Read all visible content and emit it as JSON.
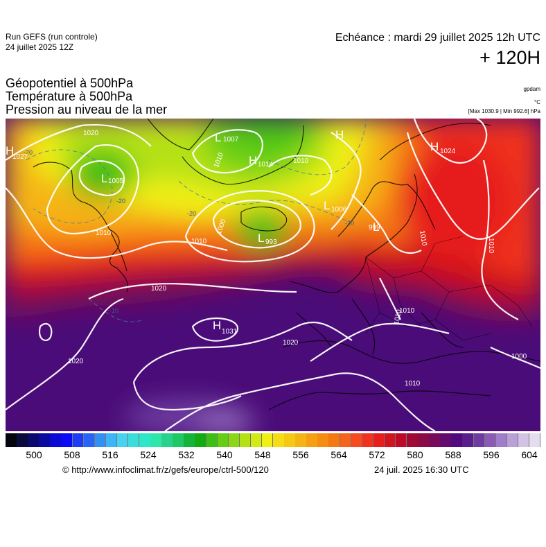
{
  "header": {
    "run_line1": "Run GEFS (run controle)",
    "run_line2": "24 juillet 2025 12Z",
    "echeance": "Echéance : mardi 29 juillet 2025 12h UTC",
    "leadtime": "+ 120H"
  },
  "parameters": [
    "Géopotentiel à 500hPa",
    "Température à 500hPa",
    "Pression au niveau de la mer"
  ],
  "units": {
    "gpdam": "gpdam",
    "celsius": "°C",
    "hpa": "[Max 1030.9 | Min 992.6] hPa"
  },
  "pressure_centers": [
    {
      "type": "H",
      "value": "1027"
    },
    {
      "type": "L",
      "value": "1005"
    },
    {
      "type": "L",
      "value": "1007"
    },
    {
      "type": "H",
      "value": "1014"
    },
    {
      "type": "H",
      "value": ""
    },
    {
      "type": "H",
      "value": "1024"
    },
    {
      "type": "L",
      "value": "993"
    },
    {
      "type": "L",
      "value": "1006"
    },
    {
      "type": "L",
      "value": "999"
    },
    {
      "type": "H",
      "value": "1031"
    }
  ],
  "isobar_labels": [
    "1020",
    "1010",
    "1010",
    "1000",
    "1010",
    "1020",
    "1010",
    "1020",
    "1010",
    "1020",
    "1010",
    "1010",
    "1010",
    "1000",
    "1010"
  ],
  "isotherm_labels": [
    "-20",
    "-20",
    "-20",
    "-20",
    "-10"
  ],
  "colorbar": {
    "ticks": [
      "500",
      "508",
      "516",
      "524",
      "532",
      "540",
      "548",
      "556",
      "564",
      "572",
      "580",
      "588",
      "596",
      "604"
    ],
    "colors": [
      "#05050f",
      "#0a0a3c",
      "#0a0a6e",
      "#0a0aa0",
      "#0a0ad2",
      "#0a0af5",
      "#1e3cf5",
      "#2864f5",
      "#3290f5",
      "#3cb4f5",
      "#46d2f0",
      "#3cdcdc",
      "#2ee6c8",
      "#2ee6aa",
      "#28d28c",
      "#1ec864",
      "#14b43c",
      "#14aa14",
      "#3cbe14",
      "#64cd14",
      "#8cd714",
      "#b4e114",
      "#d2eb14",
      "#f0f014",
      "#f5dc14",
      "#f5c814",
      "#f5b414",
      "#f5a014",
      "#f58c14",
      "#f57814",
      "#f5641e",
      "#f54b1e",
      "#f0321e",
      "#e61e1e",
      "#d2141e",
      "#be0a28",
      "#a00a32",
      "#8c0a46",
      "#780a5a",
      "#640a6e",
      "#500a7d",
      "#5a1e8c",
      "#6e3ca0",
      "#8c5ab4",
      "#a07dc8",
      "#b9a0d7",
      "#d2c3e6",
      "#e6dcf0"
    ]
  },
  "footer": {
    "credit": "© http://www.infoclimat.fr/z/gefs/europe/ctrl-500/120",
    "issued": "24 juil. 2025 16:30 UTC"
  }
}
